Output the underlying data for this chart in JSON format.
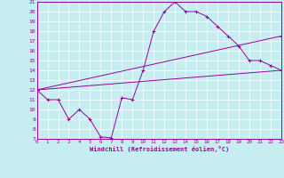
{
  "xlabel": "Windchill (Refroidissement éolien,°C)",
  "bg_color": "#c6eef0",
  "line_color": "#990099",
  "grid_color": "#ffffff",
  "axis_color": "#990099",
  "xmin": 0,
  "xmax": 23,
  "ymin": 7,
  "ymax": 21,
  "line1_x": [
    0,
    1,
    2,
    3,
    4,
    5,
    6,
    7,
    8,
    9,
    10,
    11,
    12,
    13,
    14,
    15,
    16,
    17,
    18,
    19,
    20,
    21,
    22,
    23
  ],
  "line1_y": [
    12,
    11,
    11,
    9,
    10,
    9,
    7.2,
    7.1,
    11.2,
    11,
    14,
    18,
    20,
    21,
    20,
    20,
    19.5,
    18.5,
    17.5,
    16.5,
    15,
    15,
    14.5,
    14
  ],
  "line2_x": [
    0,
    23
  ],
  "line2_y": [
    12,
    14
  ],
  "line3_x": [
    0,
    23
  ],
  "line3_y": [
    12,
    17.5
  ]
}
